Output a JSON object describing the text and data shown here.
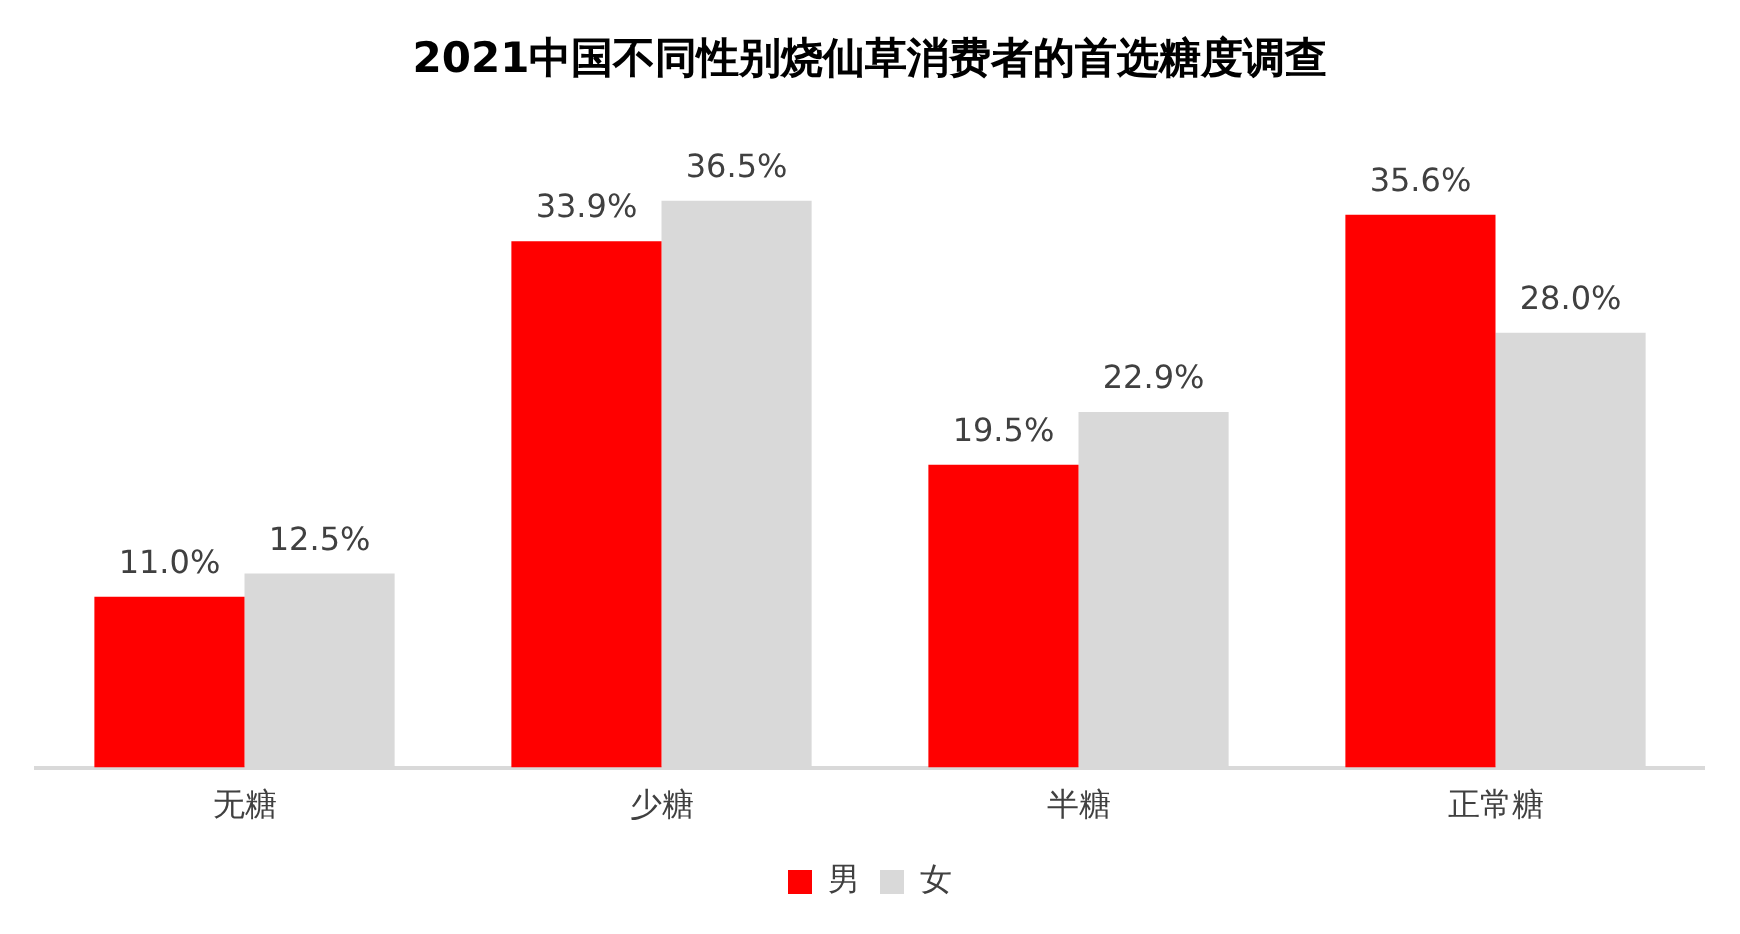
{
  "chart_data": {
    "type": "bar",
    "title": "2021中国不同性别烧仙草消费者的首选糖度调查",
    "categories": [
      "无糖",
      "少糖",
      "半糖",
      "正常糖"
    ],
    "series": [
      {
        "name": "男",
        "color": "#ff0000",
        "values": [
          11.0,
          33.9,
          19.5,
          35.6
        ],
        "value_labels": [
          "11.0%",
          "33.9%",
          "19.5%",
          "35.6%"
        ]
      },
      {
        "name": "女",
        "color": "#d9d9d9",
        "values": [
          12.5,
          36.5,
          22.9,
          28.0
        ],
        "value_labels": [
          "12.5%",
          "36.5%",
          "22.9%",
          "28.0%"
        ]
      }
    ],
    "legend": "bottom",
    "grid": false
  }
}
